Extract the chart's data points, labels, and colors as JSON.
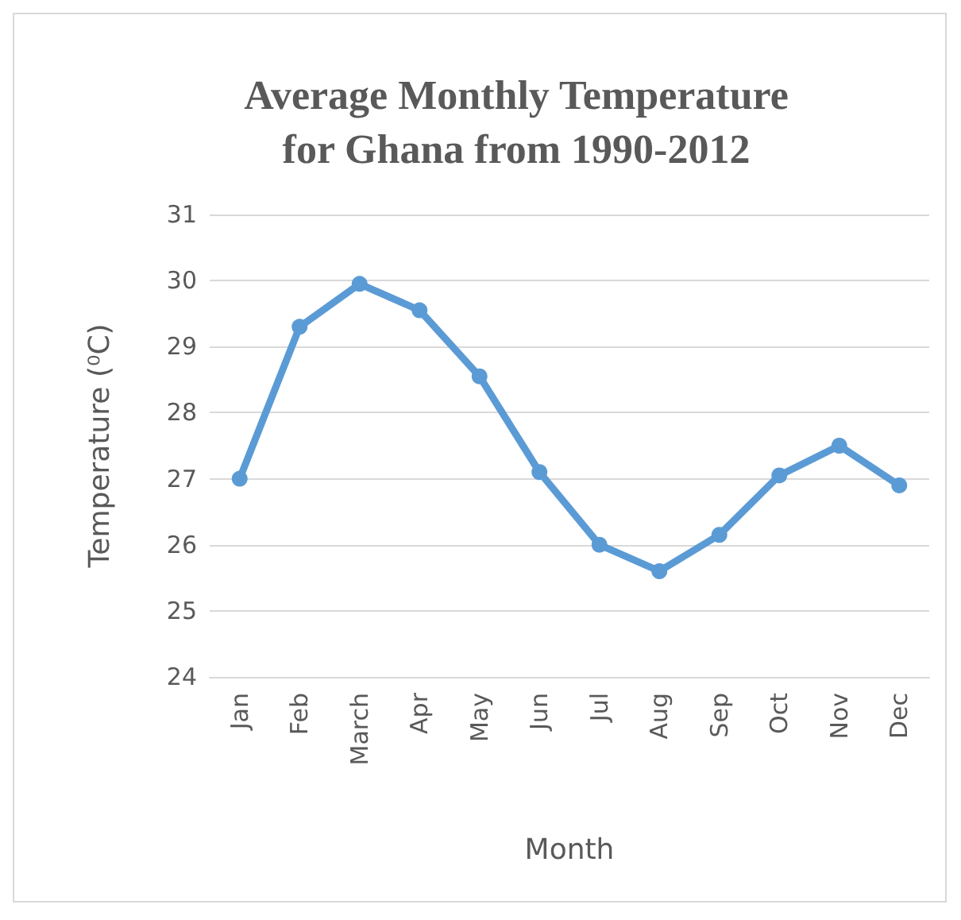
{
  "chart_data": {
    "type": "line",
    "title": "Average Monthly Temperature\nfor Ghana from 1990-2012",
    "xlabel": "Month",
    "ylabel": "Temperature (⁰C)",
    "categories": [
      "Jan",
      "Feb",
      "March",
      "Apr",
      "May",
      "Jun",
      "Jul",
      "Aug",
      "Sep",
      "Oct",
      "Nov",
      "Dec"
    ],
    "series": [
      {
        "color": "#5b9bd5",
        "values": [
          27.0,
          29.3,
          29.95,
          29.55,
          28.55,
          27.1,
          26.0,
          25.6,
          26.15,
          27.05,
          27.5,
          26.9
        ]
      }
    ],
    "ylim": [
      24,
      31
    ],
    "yticks": [
      24,
      25,
      26,
      27,
      28,
      29,
      30,
      31
    ],
    "grid": "y",
    "marker": "circle",
    "line_style": "solid"
  }
}
